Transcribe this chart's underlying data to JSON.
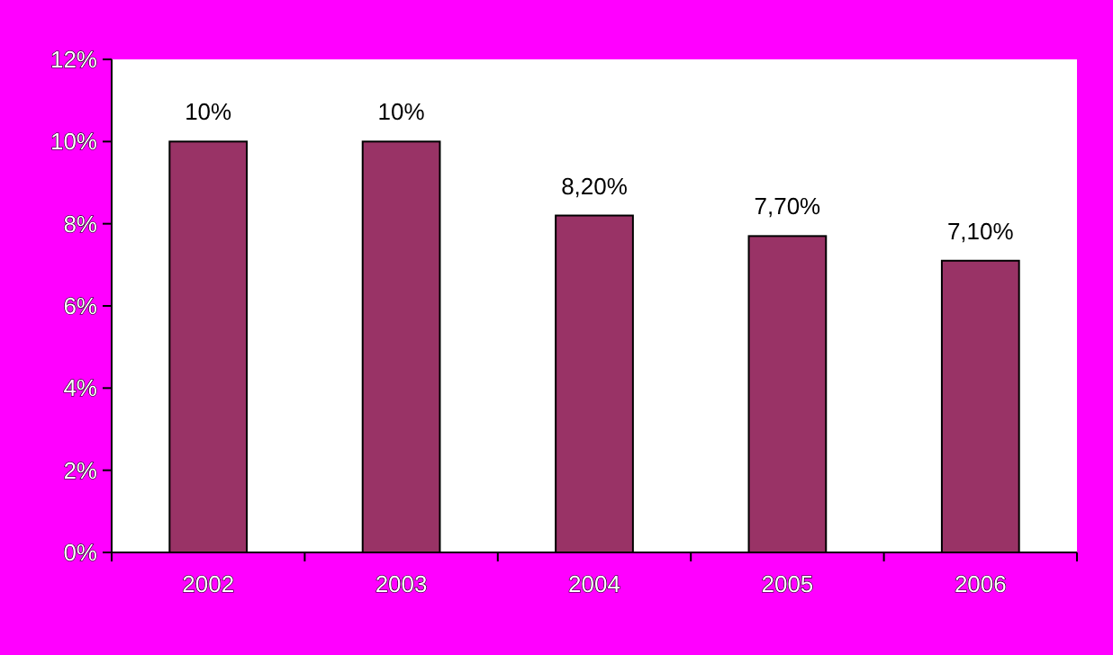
{
  "chart_data": {
    "type": "bar",
    "categories": [
      "2002",
      "2003",
      "2004",
      "2005",
      "2006"
    ],
    "values": [
      10,
      10,
      8.2,
      7.7,
      7.1
    ],
    "color": "#993366",
    "value_labels": [
      "10%",
      "10%",
      "8,20%",
      "7,70%",
      "7,10%"
    ],
    "ylim": [
      0,
      12
    ],
    "yticks": [
      {
        "value": 0,
        "label": "0%"
      },
      {
        "value": 2,
        "label": "2%"
      },
      {
        "value": 4,
        "label": "4%"
      },
      {
        "value": 6,
        "label": "6%"
      },
      {
        "value": 8,
        "label": "8%"
      },
      {
        "value": 10,
        "label": "10%"
      },
      {
        "value": 12,
        "label": "12%"
      }
    ],
    "grid": false
  }
}
